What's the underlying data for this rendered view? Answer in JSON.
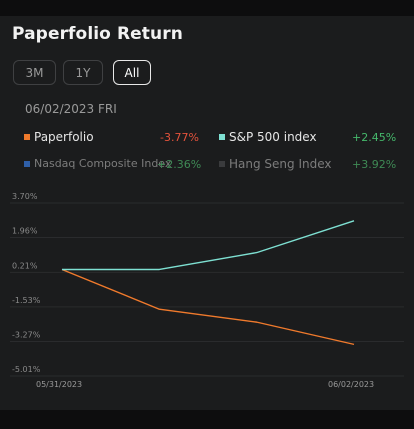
{
  "header": {
    "title": "Paperfolio Return"
  },
  "range_tabs": [
    {
      "label": "3M",
      "active": false
    },
    {
      "label": "1Y",
      "active": false
    },
    {
      "label": "All",
      "active": true
    }
  ],
  "date_label": "06/02/2023  FRI",
  "legend": [
    {
      "name": "Paperfolio",
      "value": "-3.77%",
      "color": "#f07a2c",
      "trend": "neg"
    },
    {
      "name": "S&P 500 index",
      "value": "+2.45%",
      "color": "#7ee0d2",
      "trend": "pos"
    },
    {
      "name": "Nasdaq Composite Index",
      "value": "+2.36%",
      "color": "#2f5fa8",
      "trend": "pos"
    },
    {
      "name": "Hang Seng Index",
      "value": "+3.92%",
      "color": "#3a3b3d",
      "trend": "pos"
    }
  ],
  "chart_data": {
    "type": "line",
    "y_ticks": [
      "3.70%",
      "1.96%",
      "0.21%",
      "-1.53%",
      "-3.27%",
      "-5.01%"
    ],
    "y_tick_values": [
      3.7,
      1.96,
      0.21,
      -1.53,
      -3.27,
      -5.01
    ],
    "x_labels": [
      "05/31/2023",
      "06/02/2023"
    ],
    "ylim": [
      -5.01,
      3.7
    ],
    "grid": true,
    "series": [
      {
        "name": "Paperfolio",
        "color": "#f07a2c",
        "values": [
          0.0,
          -2.0,
          -2.65,
          -3.77
        ]
      },
      {
        "name": "S&P 500 index",
        "color": "#7ee0d2",
        "values": [
          0.0,
          0.0,
          0.85,
          2.45
        ]
      }
    ]
  }
}
